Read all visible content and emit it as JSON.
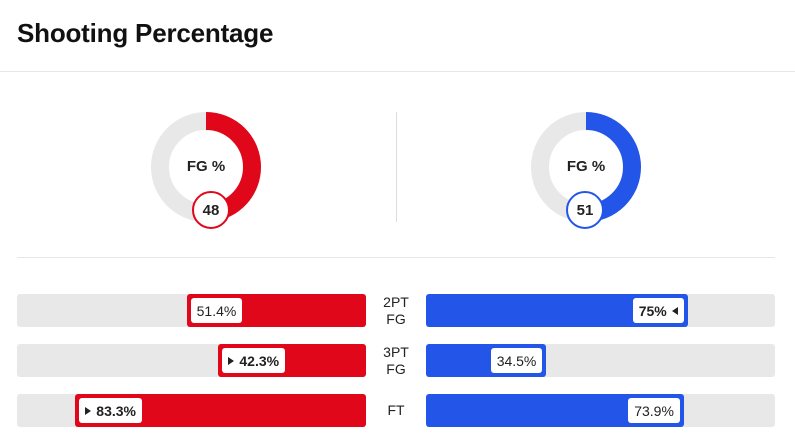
{
  "title": "Shooting Percentage",
  "colors": {
    "left": "#e1071b",
    "right": "#2356e8",
    "track": "#e8e8e8"
  },
  "donuts": [
    {
      "label": "FG %",
      "value": 48,
      "value_text": "48"
    },
    {
      "label": "FG %",
      "value": 51,
      "value_text": "51"
    }
  ],
  "stats": [
    {
      "name_lines": [
        "2PT",
        "FG"
      ],
      "left": {
        "value": 51.4,
        "text": "51.4%",
        "leader": false
      },
      "right": {
        "value": 75,
        "text": "75%",
        "leader": true
      }
    },
    {
      "name_lines": [
        "3PT",
        "FG"
      ],
      "left": {
        "value": 42.3,
        "text": "42.3%",
        "leader": true
      },
      "right": {
        "value": 34.5,
        "text": "34.5%",
        "leader": false
      }
    },
    {
      "name_lines": [
        "FT"
      ],
      "left": {
        "value": 83.3,
        "text": "83.3%",
        "leader": true
      },
      "right": {
        "value": 73.9,
        "text": "73.9%",
        "leader": false
      }
    }
  ]
}
